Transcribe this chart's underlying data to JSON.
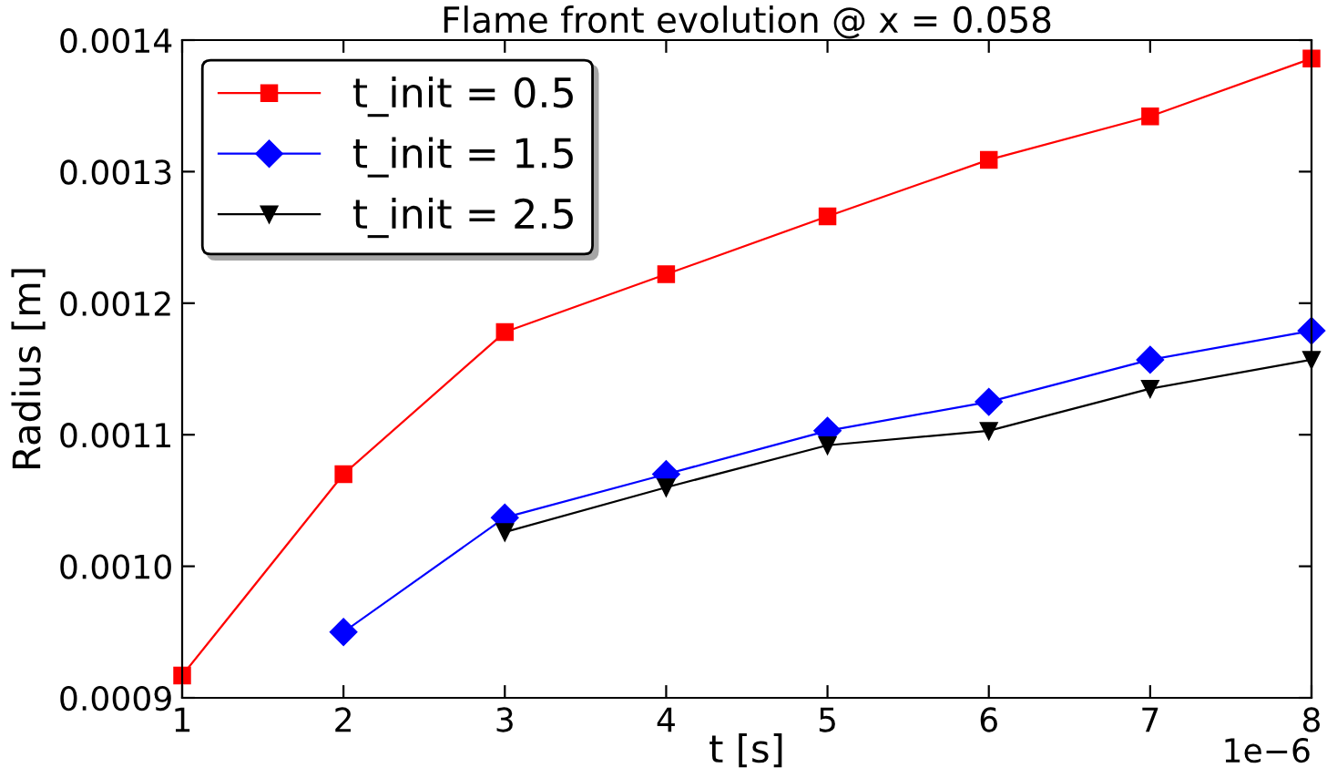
{
  "chart_data": {
    "type": "line",
    "title": "Flame front evolution @ x = 0.058",
    "xlabel": "t [s]",
    "ylabel": "Radius [m]",
    "annotations": [
      "1e−6"
    ],
    "series": [
      {
        "name": "t_init = 0.5",
        "color": "#ff0000",
        "marker": "square",
        "x": [
          1,
          2,
          3,
          4,
          5,
          6,
          7,
          8
        ],
        "values": [
          0.000917,
          0.00107,
          0.001178,
          0.001222,
          0.001266,
          0.001309,
          0.001342,
          0.001386
        ]
      },
      {
        "name": "t_init = 1.5",
        "color": "#0000ff",
        "marker": "diamond",
        "x": [
          2,
          3,
          4,
          5,
          6,
          7,
          8
        ],
        "values": [
          0.00095,
          0.001037,
          0.00107,
          0.001103,
          0.001125,
          0.001157,
          0.001179
        ]
      },
      {
        "name": "t_init = 2.5",
        "color": "#000000",
        "marker": "triangle",
        "x": [
          3,
          4,
          5,
          6,
          7,
          8
        ],
        "values": [
          0.001026,
          0.00106,
          0.001092,
          0.001103,
          0.001135,
          0.001157
        ]
      }
    ],
    "xlim": [
      1,
      8
    ],
    "xticks": [
      1,
      2,
      3,
      4,
      5,
      6,
      7,
      8
    ],
    "ylim": [
      0.0009,
      0.0014
    ],
    "yticks": [
      {
        "value": 0.0009,
        "label": "0.0009"
      },
      {
        "value": 0.001,
        "label": "0.0010"
      },
      {
        "value": 0.0011,
        "label": "0.0011"
      },
      {
        "value": 0.0012,
        "label": "0.0012"
      },
      {
        "value": 0.0013,
        "label": "0.0013"
      },
      {
        "value": 0.0014,
        "label": "0.0014"
      }
    ],
    "grid": false,
    "legend": "top left",
    "line_style": "solid"
  }
}
